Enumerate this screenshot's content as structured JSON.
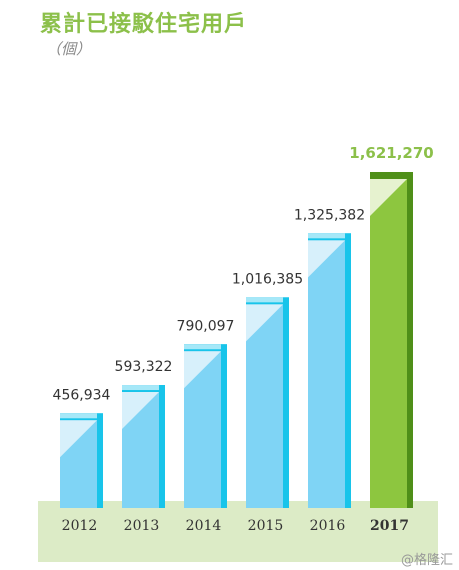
{
  "title": "累計已接駁住宅用戶",
  "unit_label": "（個）",
  "watermark": "@格隆汇",
  "colors": {
    "title": "#8cc04a",
    "bar_front": "#7fd4f5",
    "bar_side": "#18c4ea",
    "bar_top": "#a6e8f8",
    "bar_highlight": "#d7f0fb",
    "bar_front_highlight": "#8dc63f",
    "bar_side_highlight": "#4f8f18",
    "bar_top_highlight": "#e6f2cf",
    "baseline_band": "#dcebc6",
    "value_label": "#333333",
    "value_label_highlight": "#8cc04a"
  },
  "chart_data": {
    "type": "bar",
    "categories": [
      "2012",
      "2013",
      "2014",
      "2015",
      "2016",
      "2017"
    ],
    "values": [
      456934,
      593322,
      790097,
      1016385,
      1325382,
      1621270
    ],
    "value_labels": [
      "456,934",
      "593,322",
      "790,097",
      "1,016,385",
      "1,325,382",
      "1,621,270"
    ],
    "highlight_index": 5,
    "title": "累計已接駁住宅用戶",
    "xlabel": "",
    "ylabel": "（個）",
    "ylim": [
      0,
      1621270
    ],
    "grid": false,
    "legend": "none"
  }
}
